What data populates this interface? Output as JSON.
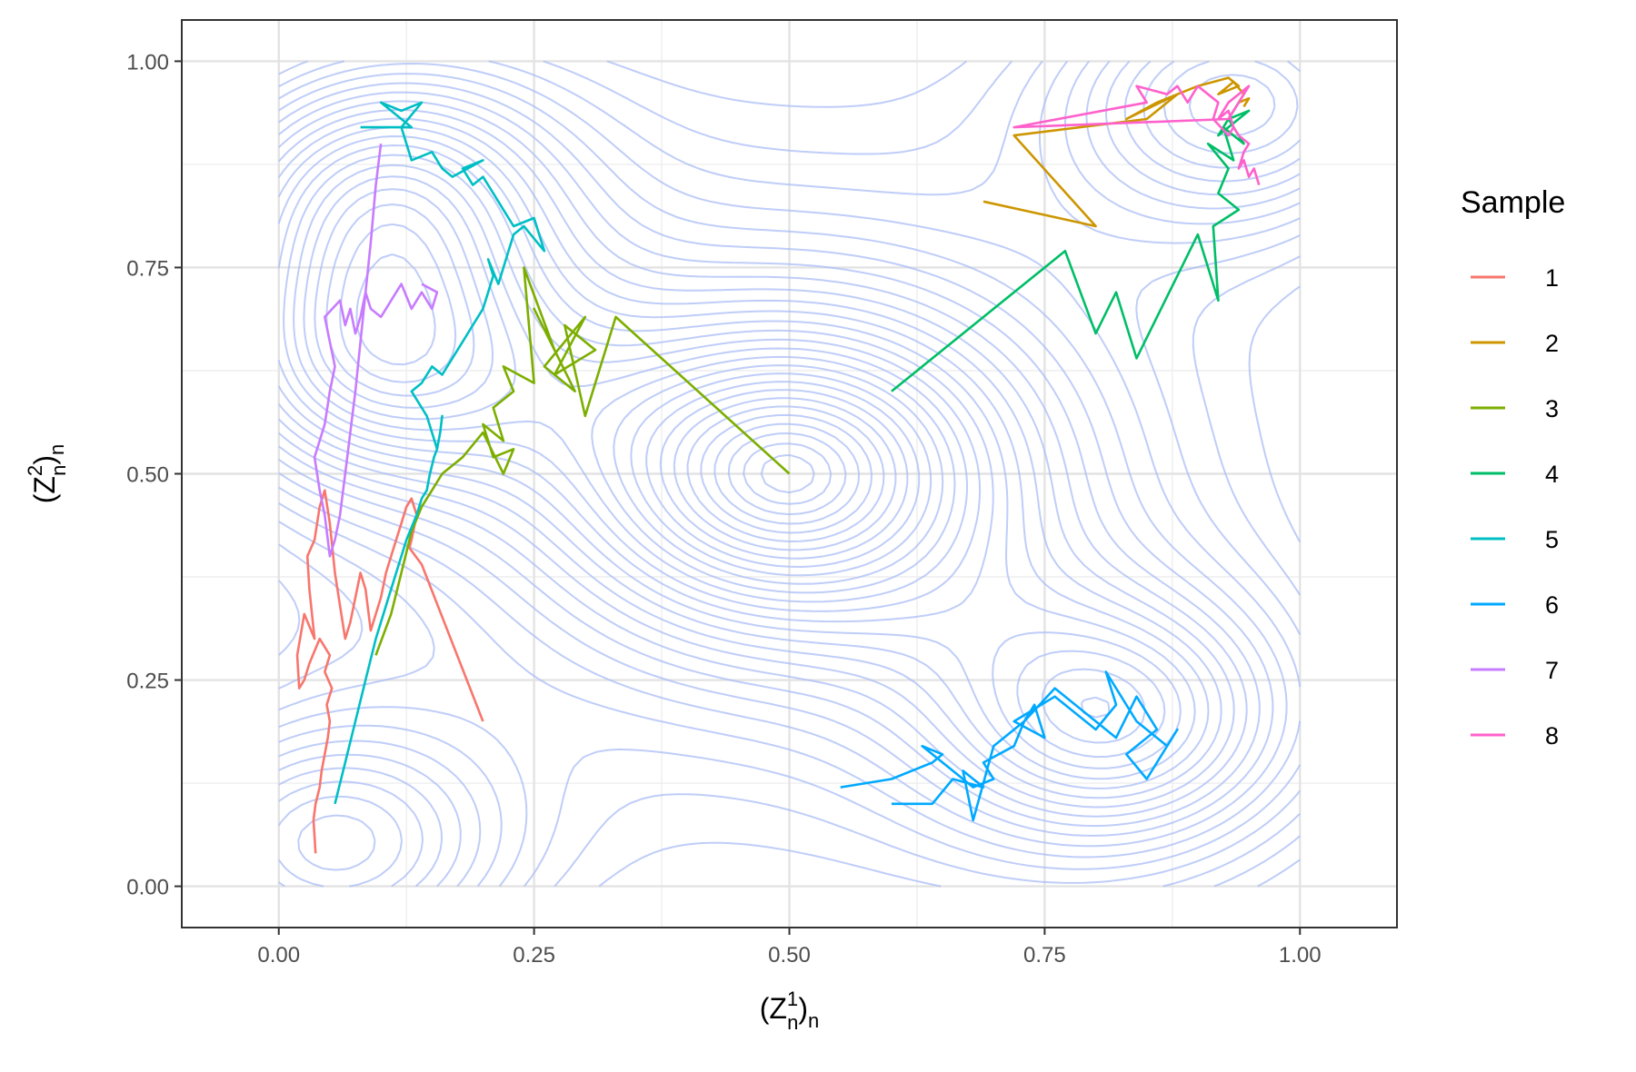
{
  "chart_data": {
    "type": "line",
    "title": "",
    "xlabel": {
      "base": "(Z",
      "superscript": "1",
      "subscript": "n",
      "close": ")",
      "trail": "n"
    },
    "ylabel": {
      "base": "(Z",
      "superscript": "2",
      "subscript": "n",
      "close": ")",
      "trail": "n"
    },
    "xlim": [
      -0.095,
      1.095
    ],
    "ylim": [
      -0.05,
      1.05
    ],
    "x_ticks": [
      0.0,
      0.25,
      0.5,
      0.75,
      1.0
    ],
    "x_tick_labels": [
      "0.00",
      "0.25",
      "0.50",
      "0.75",
      "1.00"
    ],
    "y_ticks": [
      0.0,
      0.25,
      0.5,
      0.75,
      1.0
    ],
    "y_tick_labels": [
      "0.00",
      "0.25",
      "0.50",
      "0.75",
      "1.00"
    ],
    "grid": true,
    "legend": {
      "title": "Sample",
      "position": "right"
    },
    "background_contours": {
      "color": "#a9bcf5",
      "domain": [
        0,
        1
      ],
      "centers": [
        {
          "x": 0.5,
          "y": 0.5
        },
        {
          "x": 0.04,
          "y": 0.04
        },
        {
          "x": 0.95,
          "y": 0.96
        },
        {
          "x": 0.82,
          "y": 0.2
        },
        {
          "x": 0.09,
          "y": 0.63
        },
        {
          "x": 0.1,
          "y": 0.85
        }
      ]
    },
    "series": [
      {
        "name": "1",
        "color": "#f8766d",
        "x": [
          0.036,
          0.035,
          0.034,
          0.036,
          0.04,
          0.042,
          0.045,
          0.048,
          0.05,
          0.047,
          0.052,
          0.045,
          0.05,
          0.04,
          0.03,
          0.025,
          0.02,
          0.018,
          0.025,
          0.035,
          0.03,
          0.028,
          0.035,
          0.04,
          0.045,
          0.05,
          0.055,
          0.06,
          0.065,
          0.07,
          0.075,
          0.08,
          0.085,
          0.09,
          0.095,
          0.1,
          0.105,
          0.11,
          0.115,
          0.12,
          0.125,
          0.13,
          0.135,
          0.13,
          0.128,
          0.14,
          0.2
        ],
        "y": [
          0.04,
          0.06,
          0.08,
          0.1,
          0.12,
          0.14,
          0.16,
          0.18,
          0.2,
          0.22,
          0.24,
          0.26,
          0.28,
          0.3,
          0.27,
          0.25,
          0.24,
          0.28,
          0.33,
          0.3,
          0.36,
          0.4,
          0.42,
          0.46,
          0.48,
          0.44,
          0.38,
          0.34,
          0.3,
          0.32,
          0.35,
          0.38,
          0.36,
          0.31,
          0.33,
          0.35,
          0.38,
          0.4,
          0.42,
          0.44,
          0.46,
          0.47,
          0.45,
          0.42,
          0.41,
          0.39,
          0.2
        ]
      },
      {
        "name": "2",
        "color": "#cd9600",
        "x": [
          0.69,
          0.8,
          0.72,
          0.85,
          0.88,
          0.83,
          0.86,
          0.9,
          0.93,
          0.94,
          0.92,
          0.935,
          0.945,
          0.94,
          0.95,
          0.945
        ],
        "y": [
          0.83,
          0.8,
          0.91,
          0.93,
          0.96,
          0.93,
          0.95,
          0.97,
          0.98,
          0.97,
          0.96,
          0.975,
          0.96,
          0.95,
          0.955,
          0.945
        ]
      },
      {
        "name": "3",
        "color": "#7cae00",
        "x": [
          0.5,
          0.33,
          0.3,
          0.28,
          0.31,
          0.27,
          0.3,
          0.26,
          0.29,
          0.25,
          0.27,
          0.24,
          0.25,
          0.22,
          0.23,
          0.21,
          0.22,
          0.2,
          0.21,
          0.23,
          0.22,
          0.2,
          0.18,
          0.16,
          0.15,
          0.14,
          0.13,
          0.12,
          0.11,
          0.095
        ],
        "y": [
          0.5,
          0.69,
          0.57,
          0.68,
          0.65,
          0.62,
          0.69,
          0.63,
          0.6,
          0.7,
          0.65,
          0.75,
          0.61,
          0.63,
          0.6,
          0.58,
          0.54,
          0.56,
          0.52,
          0.53,
          0.5,
          0.55,
          0.52,
          0.5,
          0.48,
          0.46,
          0.43,
          0.38,
          0.33,
          0.28
        ]
      },
      {
        "name": "4",
        "color": "#00be67",
        "x": [
          0.6,
          0.77,
          0.8,
          0.82,
          0.84,
          0.9,
          0.92,
          0.915,
          0.94,
          0.92,
          0.93,
          0.91,
          0.935,
          0.925,
          0.945,
          0.93,
          0.95,
          0.92,
          0.94,
          0.93
        ],
        "y": [
          0.6,
          0.77,
          0.67,
          0.72,
          0.64,
          0.79,
          0.71,
          0.8,
          0.82,
          0.84,
          0.87,
          0.9,
          0.88,
          0.92,
          0.9,
          0.93,
          0.94,
          0.91,
          0.95,
          0.93
        ]
      },
      {
        "name": "5",
        "color": "#00bfc4",
        "x": [
          0.055,
          0.065,
          0.075,
          0.085,
          0.095,
          0.105,
          0.115,
          0.125,
          0.135,
          0.14,
          0.145,
          0.148,
          0.15,
          0.152,
          0.155,
          0.158,
          0.16,
          0.158,
          0.155,
          0.15,
          0.145,
          0.14,
          0.135,
          0.13,
          0.14,
          0.15,
          0.16,
          0.17,
          0.18,
          0.19,
          0.2,
          0.205,
          0.21,
          0.205,
          0.215,
          0.22,
          0.23,
          0.24,
          0.26,
          0.25,
          0.23,
          0.22,
          0.21,
          0.2,
          0.19,
          0.18,
          0.2,
          0.17,
          0.16,
          0.15,
          0.13,
          0.12,
          0.14,
          0.12,
          0.1,
          0.13,
          0.08
        ],
        "y": [
          0.1,
          0.15,
          0.2,
          0.25,
          0.3,
          0.34,
          0.38,
          0.42,
          0.45,
          0.47,
          0.48,
          0.5,
          0.51,
          0.52,
          0.53,
          0.55,
          0.57,
          0.55,
          0.53,
          0.55,
          0.57,
          0.58,
          0.59,
          0.6,
          0.61,
          0.63,
          0.62,
          0.64,
          0.66,
          0.68,
          0.7,
          0.72,
          0.74,
          0.76,
          0.73,
          0.75,
          0.79,
          0.8,
          0.77,
          0.81,
          0.8,
          0.82,
          0.84,
          0.86,
          0.85,
          0.87,
          0.88,
          0.86,
          0.87,
          0.89,
          0.88,
          0.92,
          0.95,
          0.94,
          0.95,
          0.92,
          0.92
        ]
      },
      {
        "name": "6",
        "color": "#00a9ff",
        "x": [
          0.55,
          0.6,
          0.62,
          0.64,
          0.65,
          0.63,
          0.66,
          0.67,
          0.68,
          0.7,
          0.69,
          0.72,
          0.73,
          0.74,
          0.75,
          0.72,
          0.76,
          0.78,
          0.8,
          0.82,
          0.81,
          0.84,
          0.87,
          0.88,
          0.85,
          0.83,
          0.86,
          0.84,
          0.82,
          0.79,
          0.76,
          0.73,
          0.7,
          0.68,
          0.67,
          0.69,
          0.66,
          0.64,
          0.6
        ],
        "y": [
          0.12,
          0.13,
          0.14,
          0.15,
          0.16,
          0.17,
          0.14,
          0.13,
          0.12,
          0.13,
          0.15,
          0.17,
          0.2,
          0.22,
          0.18,
          0.2,
          0.23,
          0.21,
          0.19,
          0.22,
          0.26,
          0.2,
          0.17,
          0.19,
          0.13,
          0.16,
          0.19,
          0.23,
          0.18,
          0.21,
          0.24,
          0.2,
          0.17,
          0.08,
          0.14,
          0.12,
          0.13,
          0.1,
          0.1
        ]
      },
      {
        "name": "7",
        "color": "#c77cff",
        "x": [
          0.1,
          0.095,
          0.09,
          0.085,
          0.08,
          0.075,
          0.07,
          0.065,
          0.06,
          0.055,
          0.05,
          0.045,
          0.04,
          0.035,
          0.045,
          0.05,
          0.055,
          0.05,
          0.045,
          0.06,
          0.065,
          0.07,
          0.075,
          0.08,
          0.085,
          0.09,
          0.1,
          0.11,
          0.12,
          0.13,
          0.14,
          0.15,
          0.155,
          0.14
        ],
        "y": [
          0.9,
          0.85,
          0.78,
          0.72,
          0.66,
          0.6,
          0.55,
          0.5,
          0.45,
          0.42,
          0.4,
          0.45,
          0.48,
          0.52,
          0.56,
          0.6,
          0.63,
          0.66,
          0.69,
          0.71,
          0.68,
          0.7,
          0.67,
          0.69,
          0.72,
          0.7,
          0.69,
          0.71,
          0.73,
          0.7,
          0.72,
          0.7,
          0.72,
          0.73
        ]
      },
      {
        "name": "8",
        "color": "#ff61cc",
        "x": [
          0.96,
          0.955,
          0.95,
          0.945,
          0.94,
          0.945,
          0.95,
          0.94,
          0.935,
          0.93,
          0.92,
          0.93,
          0.94,
          0.95,
          0.945,
          0.94,
          0.935,
          0.93,
          0.72,
          0.85,
          0.84,
          0.87,
          0.88,
          0.89,
          0.9,
          0.92,
          0.915,
          0.93,
          0.935
        ],
        "y": [
          0.85,
          0.87,
          0.86,
          0.88,
          0.87,
          0.89,
          0.9,
          0.91,
          0.92,
          0.94,
          0.93,
          0.95,
          0.96,
          0.97,
          0.96,
          0.95,
          0.94,
          0.93,
          0.92,
          0.95,
          0.97,
          0.96,
          0.97,
          0.95,
          0.97,
          0.95,
          0.93,
          0.91,
          0.92
        ]
      }
    ]
  }
}
